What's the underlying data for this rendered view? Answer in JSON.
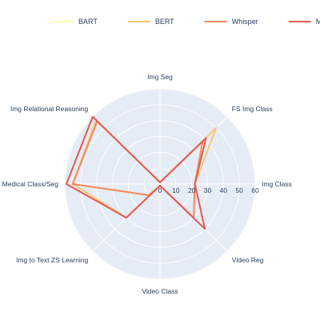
{
  "chart_data": {
    "type": "radar",
    "title": "",
    "categories": [
      "Img Seg",
      "FS Img Class",
      "Img Class",
      "Video Reg",
      "Video Class",
      "Img to Text ZS Learning",
      "Medical Class/Seg",
      "Img Relational Reasoning"
    ],
    "radial_ticks": [
      "0",
      "10",
      "20",
      "30",
      "40",
      "50",
      "60"
    ],
    "radial_range": [
      0,
      60
    ],
    "legend_position": "top",
    "series": [
      {
        "name": "BART",
        "color": "#feffb3",
        "values": [
          1,
          40,
          22,
          30,
          1,
          30,
          55,
          57
        ]
      },
      {
        "name": "BERT",
        "color": "#fdc679",
        "values": [
          1,
          50,
          22,
          30,
          1,
          30,
          55,
          57
        ]
      },
      {
        "name": "Whisper",
        "color": "#f4895f",
        "values": [
          1,
          38,
          22,
          30,
          1,
          10,
          55,
          56
        ]
      },
      {
        "name": "MPNET",
        "color": "#e45a4f",
        "values": [
          1,
          41,
          22,
          40,
          1,
          30,
          59,
          60
        ]
      }
    ]
  }
}
